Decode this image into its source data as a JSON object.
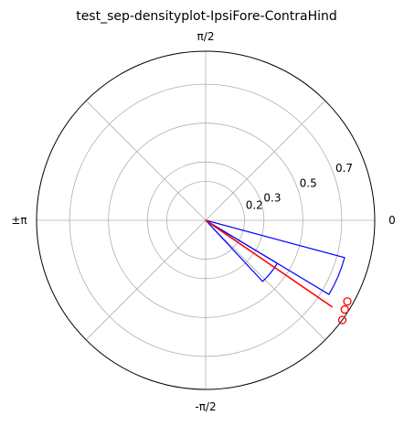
{
  "chart_data": {
    "type": "polar",
    "title": "test_sep-densityplot-IpsiFore-ContraHind",
    "angle_labels": {
      "right": "0",
      "top": "π/2",
      "left": "±π",
      "bottom": "-π/2"
    },
    "radial_ticks": [
      {
        "value": 0.2,
        "label": "0.2"
      },
      {
        "value": 0.3,
        "label": "0.3"
      },
      {
        "value": 0.5,
        "label": "0.5"
      },
      {
        "value": 0.7,
        "label": "0.7"
      }
    ],
    "rlim": [
      0,
      0.87
    ],
    "grid": true,
    "density_bins": [
      {
        "theta_start": -0.541,
        "theta_end": -0.262,
        "density": 0.74
      },
      {
        "theta_start": -0.82,
        "theta_end": -0.541,
        "density": 0.43
      }
    ],
    "mean_vector": {
      "angle": -0.6,
      "length": 0.79
    },
    "data_points": [
      {
        "angle": -0.52,
        "r": 0.84
      },
      {
        "angle": -0.57,
        "r": 0.85
      },
      {
        "angle": -0.63,
        "r": 0.87
      }
    ],
    "colors": {
      "bins": "#0000ff",
      "mean_vector": "#ff0000",
      "points": "#ff0000",
      "grid": "#b0b0b0",
      "outline": "#000000"
    }
  }
}
